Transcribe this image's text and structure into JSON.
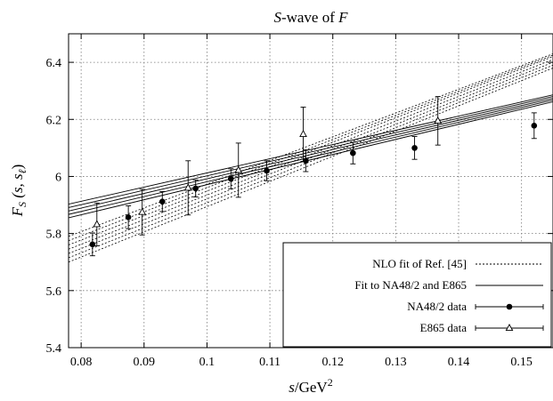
{
  "chart_data": {
    "type": "scatter",
    "title_italic": "S",
    "title_rest": "-wave of ",
    "title_italic2": "F",
    "xlabel_italic": "s",
    "xlabel_rest": "/GeV",
    "xlabel_sup": "2",
    "ylabel_main": "F",
    "ylabel_sub": "S",
    "ylabel_args": " (s, s",
    "ylabel_sub2": "ℓ",
    "ylabel_close": ")",
    "xlim": [
      0.078,
      0.155
    ],
    "ylim": [
      5.4,
      6.5
    ],
    "xticks": [
      0.08,
      0.09,
      0.1,
      0.11,
      0.12,
      0.13,
      0.14,
      0.15
    ],
    "xtick_labels": [
      "0.08",
      "0.09",
      "0.1",
      "0.11",
      "0.12",
      "0.13",
      "0.14",
      "0.15"
    ],
    "yticks": [
      5.4,
      5.6,
      5.8,
      6.0,
      6.2,
      6.4
    ],
    "ytick_labels": [
      "5.4",
      "5.6",
      "5.8",
      "6",
      "6.2",
      "6.4"
    ],
    "grid": true,
    "legend_position": "bottom-right",
    "series": [
      {
        "name": "NLO fit of Ref. [45]",
        "kind": "band-dotted",
        "lines": [
          [
            [
              0.078,
              5.7
            ],
            [
              0.155,
              6.38
            ]
          ],
          [
            [
              0.078,
              5.715
            ],
            [
              0.155,
              6.39
            ]
          ],
          [
            [
              0.078,
              5.73
            ],
            [
              0.155,
              6.4
            ]
          ],
          [
            [
              0.078,
              5.745
            ],
            [
              0.155,
              6.41
            ]
          ],
          [
            [
              0.078,
              5.76
            ],
            [
              0.155,
              6.42
            ]
          ],
          [
            [
              0.078,
              5.775
            ],
            [
              0.155,
              6.425
            ]
          ],
          [
            [
              0.078,
              5.79
            ],
            [
              0.155,
              6.43
            ]
          ]
        ]
      },
      {
        "name": "Fit to NA48/2 and E865",
        "kind": "band-solid",
        "lines": [
          [
            [
              0.078,
              5.855
            ],
            [
              0.155,
              6.262
            ]
          ],
          [
            [
              0.078,
              5.867
            ],
            [
              0.155,
              6.268
            ]
          ],
          [
            [
              0.078,
              5.879
            ],
            [
              0.155,
              6.274
            ]
          ],
          [
            [
              0.078,
              5.891
            ],
            [
              0.155,
              6.28
            ]
          ],
          [
            [
              0.078,
              5.903
            ],
            [
              0.155,
              6.286
            ]
          ]
        ]
      },
      {
        "name": "NA48/2 data",
        "kind": "points",
        "marker": "circle",
        "points": [
          {
            "x": 0.0818,
            "y": 5.762,
            "err": 0.04
          },
          {
            "x": 0.0875,
            "y": 5.857,
            "err": 0.04
          },
          {
            "x": 0.0929,
            "y": 5.912,
            "err": 0.035
          },
          {
            "x": 0.0982,
            "y": 5.958,
            "err": 0.03
          },
          {
            "x": 0.1038,
            "y": 5.992,
            "err": 0.035
          },
          {
            "x": 0.1095,
            "y": 6.02,
            "err": 0.035
          },
          {
            "x": 0.1157,
            "y": 6.055,
            "err": 0.038
          },
          {
            "x": 0.1232,
            "y": 6.082,
            "err": 0.038
          },
          {
            "x": 0.133,
            "y": 6.1,
            "err": 0.04
          },
          {
            "x": 0.152,
            "y": 6.178,
            "err": 0.045
          }
        ]
      },
      {
        "name": "E865 data",
        "kind": "points",
        "marker": "triangle",
        "points": [
          {
            "x": 0.0825,
            "y": 5.832,
            "err": 0.075
          },
          {
            "x": 0.0897,
            "y": 5.875,
            "err": 0.08
          },
          {
            "x": 0.097,
            "y": 5.96,
            "err": 0.095
          },
          {
            "x": 0.105,
            "y": 6.022,
            "err": 0.095
          },
          {
            "x": 0.1153,
            "y": 6.148,
            "err": 0.095
          },
          {
            "x": 0.1367,
            "y": 6.195,
            "err": 0.085
          }
        ]
      }
    ]
  }
}
